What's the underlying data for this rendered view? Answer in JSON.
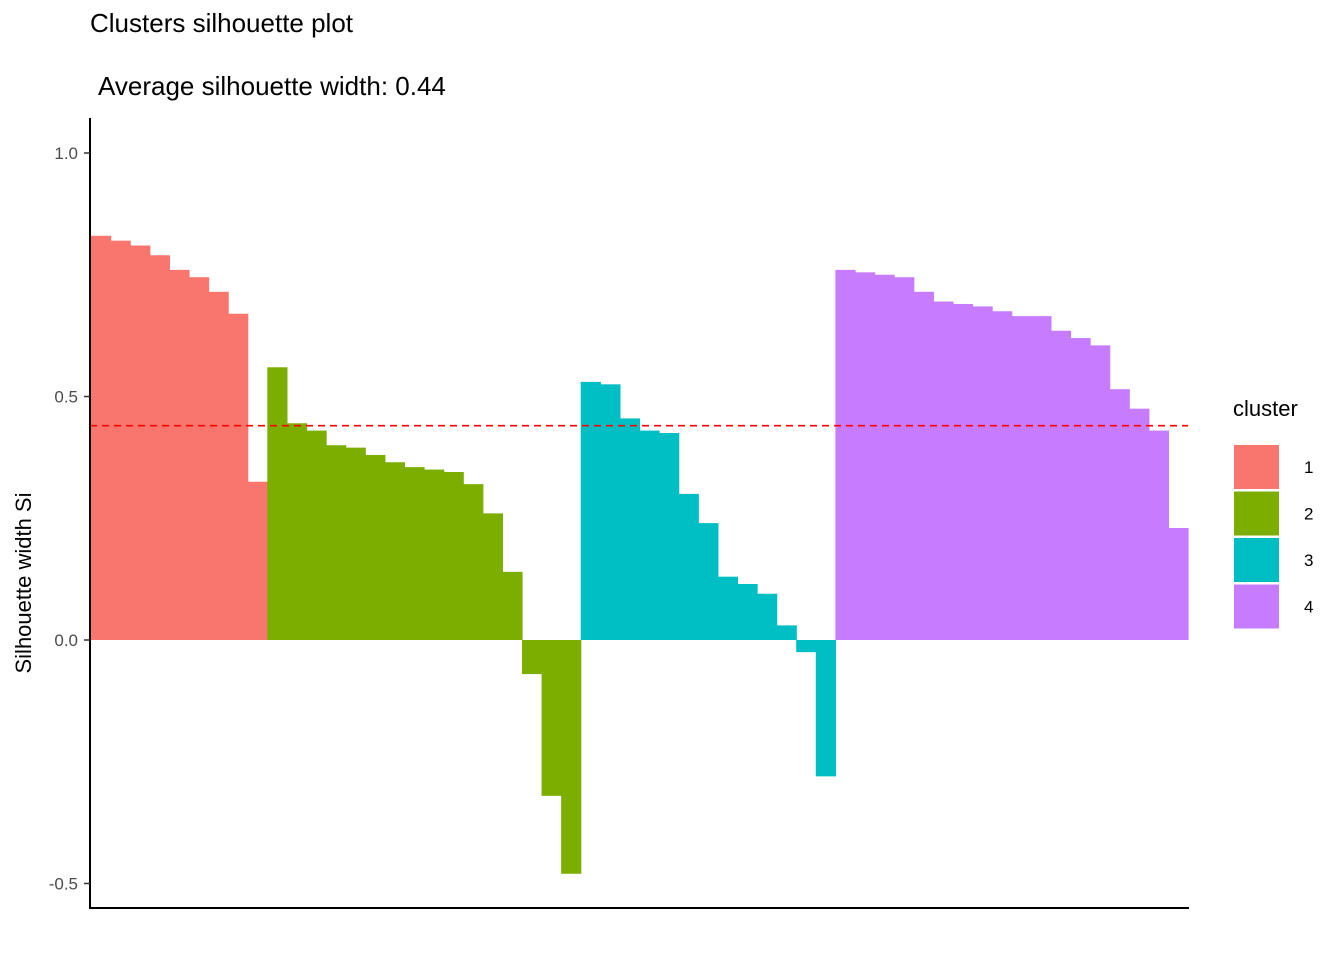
{
  "chart_data": {
    "type": "bar",
    "title": "Clusters silhouette plot",
    "subtitle": " Average silhouette width: 0.44",
    "xlabel": "",
    "ylabel": "Silhouette width Si",
    "ylim": [
      -0.55,
      1.07
    ],
    "yticks": [
      "-0.5",
      "0.0",
      "0.5",
      "1.0"
    ],
    "ytick_values": [
      -0.5,
      0.0,
      0.5,
      1.0
    ],
    "average_line": {
      "value": 0.44,
      "color": "#ff0000",
      "style": "dashed"
    },
    "grid": false,
    "legend": {
      "title": "cluster",
      "position": "right"
    },
    "colors": {
      "1": "#F8766D",
      "2": "#7CAE00",
      "3": "#00BFC4",
      "4": "#C77CFF"
    },
    "series": [
      {
        "name": "1",
        "values": [
          0.83,
          0.82,
          0.81,
          0.79,
          0.76,
          0.745,
          0.715,
          0.67,
          0.325
        ]
      },
      {
        "name": "2",
        "values": [
          0.56,
          0.445,
          0.43,
          0.4,
          0.395,
          0.38,
          0.365,
          0.355,
          0.35,
          0.345,
          0.32,
          0.26,
          0.14,
          -0.07,
          -0.32,
          -0.48
        ]
      },
      {
        "name": "3",
        "values": [
          0.53,
          0.525,
          0.455,
          0.43,
          0.425,
          0.3,
          0.24,
          0.13,
          0.115,
          0.095,
          0.03,
          -0.025,
          -0.28
        ]
      },
      {
        "name": "4",
        "values": [
          0.76,
          0.755,
          0.75,
          0.745,
          0.715,
          0.695,
          0.69,
          0.685,
          0.675,
          0.665,
          0.665,
          0.635,
          0.62,
          0.605,
          0.515,
          0.475,
          0.43,
          0.23
        ]
      }
    ]
  }
}
